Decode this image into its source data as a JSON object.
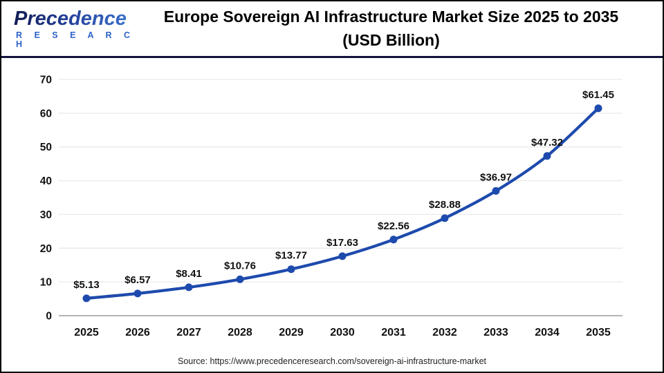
{
  "header": {
    "logo": {
      "name": "Precedence",
      "subtitle": "R E S E A R C H"
    },
    "title_line1": "Europe Sovereign AI Infrastructure Market Size 2025 to 2035",
    "title_line2": "(USD Billion)"
  },
  "chart_data": {
    "type": "line",
    "title": "Europe Sovereign AI Infrastructure Market Size 2025 to 2035 (USD Billion)",
    "categories": [
      "2025",
      "2026",
      "2027",
      "2028",
      "2029",
      "2030",
      "2031",
      "2032",
      "2033",
      "2034",
      "2035"
    ],
    "series": [
      {
        "name": "Market Size (USD Billion)",
        "values": [
          5.13,
          6.57,
          8.41,
          10.76,
          13.77,
          17.63,
          22.56,
          28.88,
          36.97,
          47.32,
          61.45
        ]
      }
    ],
    "value_labels": [
      "$5.13",
      "$6.57",
      "$8.41",
      "$10.76",
      "$13.77",
      "$17.63",
      "$22.56",
      "$28.88",
      "$36.97",
      "$47.32",
      "$61.45"
    ],
    "xlabel": "",
    "ylabel": "",
    "ylim": [
      0,
      70
    ],
    "yticks": [
      0,
      10,
      20,
      30,
      40,
      50,
      60,
      70
    ],
    "grid": "horizontal",
    "legend": "none",
    "colors": {
      "line": "#1d4aad",
      "marker": "#1d4aad",
      "grid": "#e9e9e9",
      "axis": "#b3b3b3",
      "text": "#111111"
    }
  },
  "footer": {
    "source": "Source: https://www.precedenceresearch.com/sovereign-ai-infrastructure-market"
  }
}
